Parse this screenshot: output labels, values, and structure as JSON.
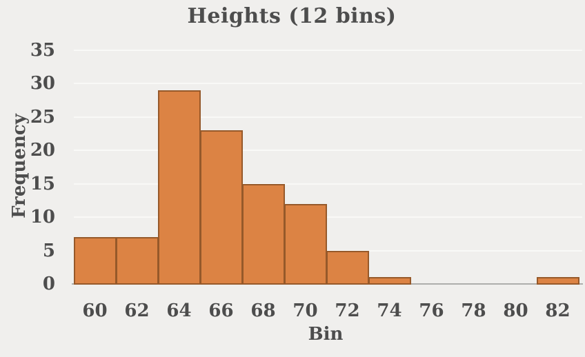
{
  "title": "Heights (12 bins)",
  "chart_data": {
    "type": "bar",
    "subtype": "histogram",
    "title": "Heights (12 bins)",
    "xlabel": "Bin",
    "ylabel": "Frequency",
    "bin_edges": [
      59,
      61,
      63,
      65,
      67,
      69,
      71,
      73,
      75,
      77,
      79,
      81,
      83
    ],
    "categories": [
      60,
      62,
      64,
      66,
      68,
      70,
      72,
      74,
      76,
      78,
      80,
      82
    ],
    "values": [
      7,
      7,
      29,
      23,
      15,
      12,
      5,
      1,
      0,
      0,
      0,
      1
    ],
    "xticks": [
      60,
      62,
      64,
      66,
      68,
      70,
      72,
      74,
      76,
      78,
      80,
      82
    ],
    "yticks": [
      0,
      5,
      10,
      15,
      20,
      25,
      30,
      35
    ],
    "xlim": [
      59,
      83
    ],
    "ylim": [
      0,
      36
    ],
    "grid": "horizontal-faint",
    "legend": "none",
    "colors": {
      "bar_fill": "#dc8344",
      "bar_edge": "#96592a",
      "background": "#f0efed",
      "gridline": "#f9f9f7",
      "axis_line": "#adadab",
      "text": "#4d4d4d"
    }
  }
}
